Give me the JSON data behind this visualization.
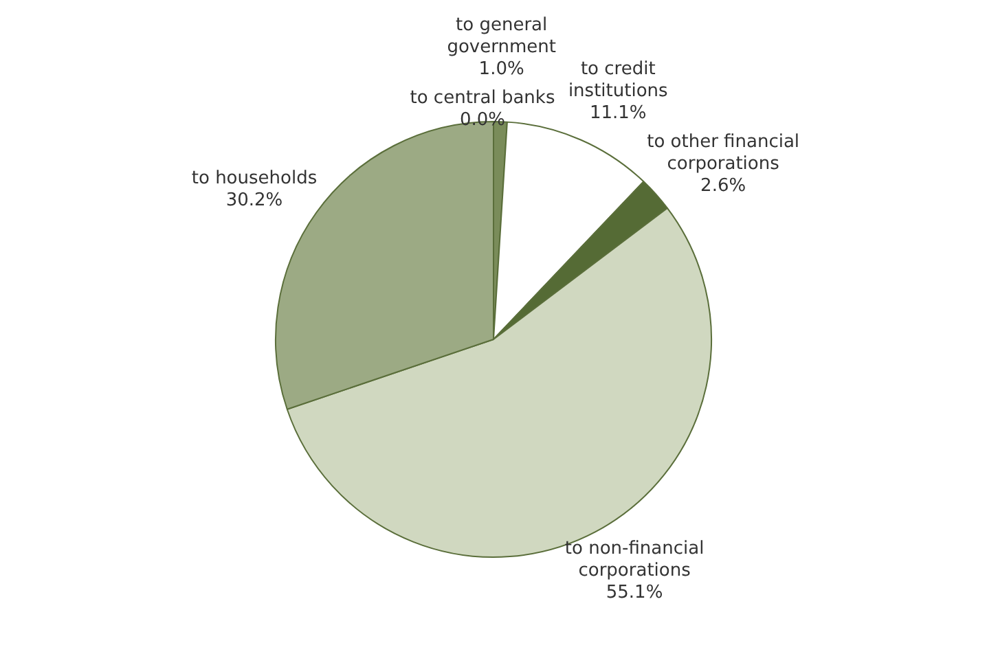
{
  "chart_data": {
    "type": "pie",
    "categories": [
      "to central banks",
      "to general government",
      "to credit institutions",
      "to other financial corporations",
      "to non-financial corporations",
      "to households"
    ],
    "values": [
      0.0,
      1.0,
      11.1,
      2.6,
      55.1,
      30.2
    ],
    "value_labels": [
      "0.0%",
      "1.0%",
      "11.1%",
      "2.6%",
      "55.1%",
      "30.2%"
    ],
    "colors": [
      "#3f5225",
      "#7a8c5a",
      "#ffffff",
      "#556b35",
      "#d0d8c0",
      "#9caa84"
    ],
    "legend": false
  }
}
